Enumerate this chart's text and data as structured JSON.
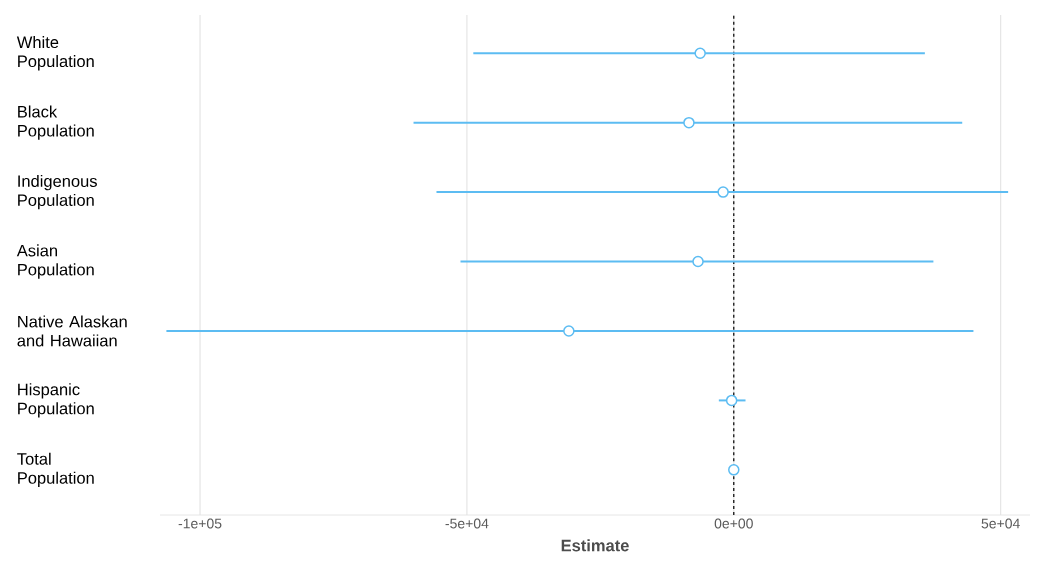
{
  "chart_data": {
    "type": "scatter",
    "orientation": "horizontal",
    "xlabel": "Estimate",
    "categories": [
      "White Population",
      "Black Population",
      "Indigenous Population",
      "Asian Population",
      "Native Alaskan and Hawaiian",
      "Hispanic Population",
      "Total Population"
    ],
    "values": [
      -6300,
      -8400,
      -2000,
      -6700,
      -30900,
      -400,
      0
    ],
    "errors": [
      [
        -48800,
        35800
      ],
      [
        -60000,
        42800
      ],
      [
        -55700,
        51400
      ],
      [
        -51200,
        37400
      ],
      [
        -106300,
        44900
      ],
      [
        -2800,
        2200
      ],
      null
    ],
    "color": "#5cbcf2",
    "marker": "circle",
    "grid": "x",
    "xlim": [
      -107500,
      55500
    ],
    "xticks": [
      {
        "value": -100000,
        "label": "-1e+05"
      },
      {
        "value": -50000,
        "label": "-5e+04"
      },
      {
        "value": 0,
        "label": "0e+00"
      },
      {
        "value": 50000,
        "label": "5e+04"
      }
    ],
    "ref_lines": [
      {
        "axis": "x",
        "value": 0,
        "line_style": "dashed",
        "color": "#000000"
      }
    ]
  }
}
